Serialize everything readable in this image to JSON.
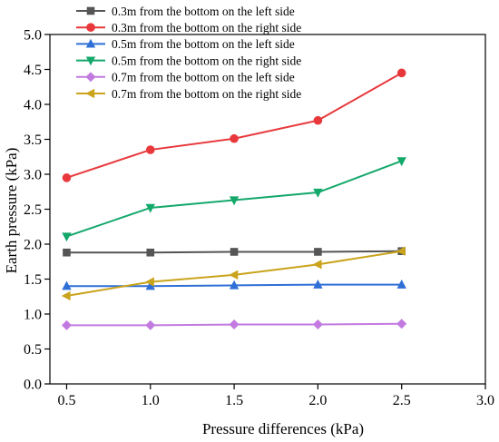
{
  "chart_data": {
    "type": "line",
    "title": "",
    "xlabel": "Pressure differences (kPa)",
    "ylabel": "Earth pressure (kPa)",
    "xlim": [
      0.4,
      3.0
    ],
    "ylim": [
      0.0,
      5.0
    ],
    "x_ticks": [
      "0.5",
      "1.0",
      "1.5",
      "2.0",
      "2.5",
      "3.0"
    ],
    "y_ticks": [
      "0.0",
      "0.5",
      "1.0",
      "1.5",
      "2.0",
      "2.5",
      "3.0",
      "3.5",
      "4.0",
      "4.5",
      "5.0"
    ],
    "grid": false,
    "legend_position": "top-left",
    "x": [
      0.5,
      1.0,
      1.5,
      2.0,
      2.5
    ],
    "series": [
      {
        "name": "0.3m from the bottom on the left side",
        "color": "#555555",
        "marker": "square",
        "values": [
          1.88,
          1.88,
          1.89,
          1.89,
          1.9
        ]
      },
      {
        "name": "0.3m from the bottom on the right side",
        "color": "#e8383b",
        "marker": "circle",
        "values": [
          2.95,
          3.35,
          3.51,
          3.77,
          4.45
        ]
      },
      {
        "name": "0.5m from the bottom on the left side",
        "color": "#2f6fd6",
        "marker": "triangle-up",
        "values": [
          1.4,
          1.4,
          1.41,
          1.42,
          1.42
        ]
      },
      {
        "name": "0.5m from the bottom on the right side",
        "color": "#14a86b",
        "marker": "triangle-down",
        "values": [
          2.11,
          2.52,
          2.63,
          2.74,
          3.19
        ]
      },
      {
        "name": "0.7m from the bottom on the left side",
        "color": "#c27ae0",
        "marker": "diamond",
        "values": [
          0.84,
          0.84,
          0.85,
          0.85,
          0.86
        ]
      },
      {
        "name": "0.7m from the bottom on the right side",
        "color": "#c9a41c",
        "marker": "triangle-left",
        "values": [
          1.26,
          1.46,
          1.56,
          1.71,
          1.9
        ]
      }
    ]
  }
}
